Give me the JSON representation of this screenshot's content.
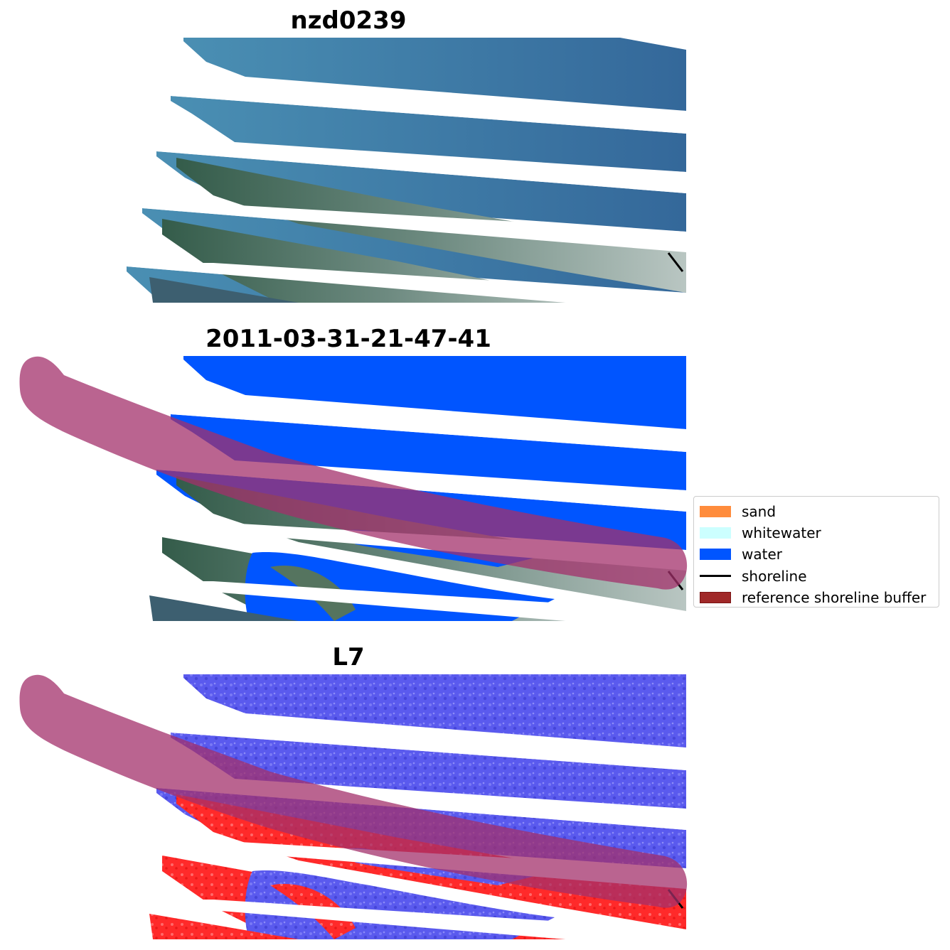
{
  "panels": [
    {
      "title": "nzd0239",
      "mode": "rgb"
    },
    {
      "title": "2011-03-31-21-47-41",
      "mode": "classified"
    },
    {
      "title": "L7",
      "mode": "index"
    }
  ],
  "legend": {
    "items": [
      {
        "label": "sand",
        "color": "#ff8c3c",
        "kind": "patch"
      },
      {
        "label": "whitewater",
        "color": "#ccffff",
        "kind": "patch"
      },
      {
        "label": "water",
        "color": "#0055ff",
        "kind": "patch"
      },
      {
        "label": "shoreline",
        "color": "#000000",
        "kind": "line"
      },
      {
        "label": "reference shoreline buffer",
        "color": "#a02828",
        "kind": "patch"
      }
    ]
  },
  "colors": {
    "buffer_overlay": "#a3306b",
    "water_class": "#0055ff",
    "sea_rgb": "#3f7fa6",
    "land_rgb": "#3f6a52",
    "index_water": "#5a5aee",
    "index_land": "#ff2a2a"
  }
}
